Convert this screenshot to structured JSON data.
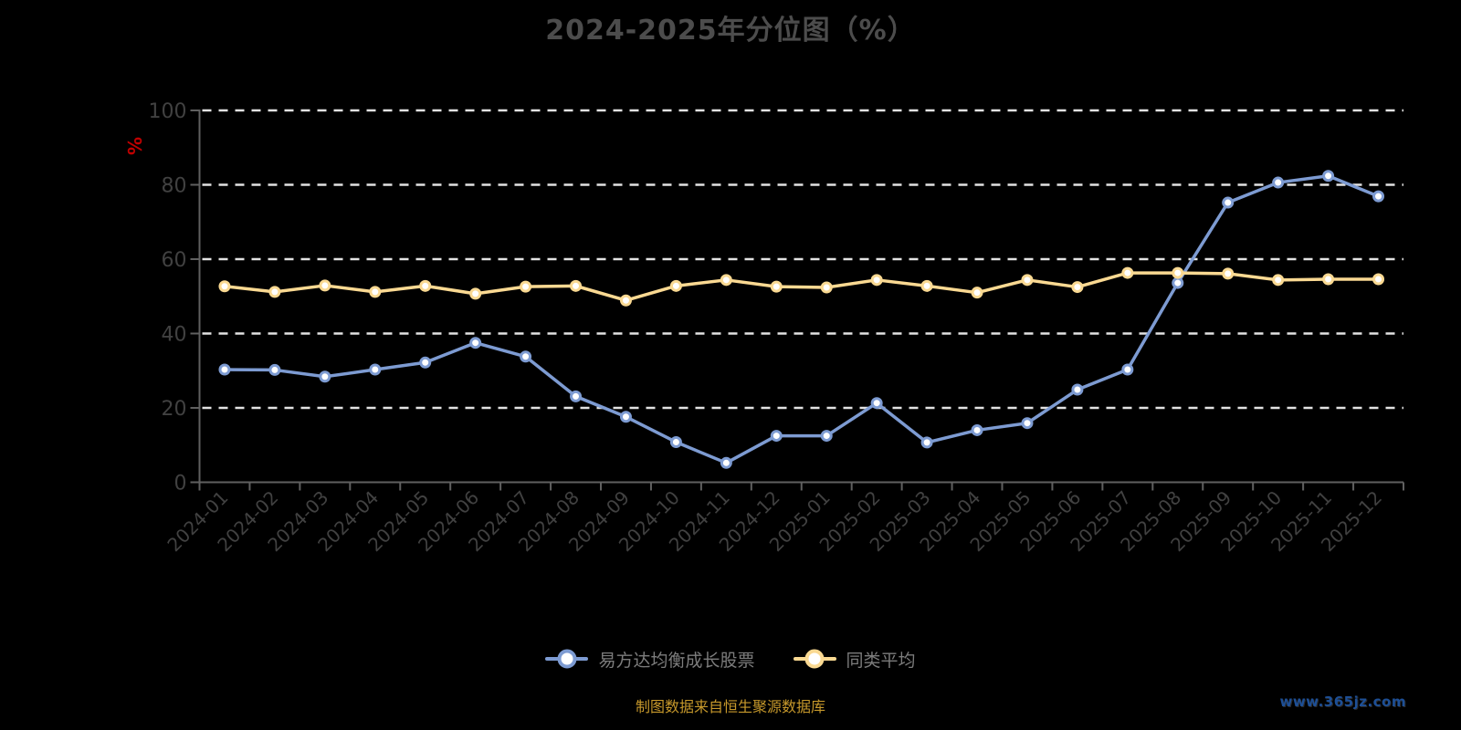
{
  "source_note": "制图数据来自恒生聚源数据库",
  "watermark": "www.365jz.com",
  "colors": {
    "background": "#000000",
    "title": "#4c4c4c",
    "axis_label": "#414141",
    "axis_line": "#606060",
    "gridline": "#e2e2e2",
    "unit": "#c00000",
    "legend_text": "#7c7c7c",
    "source_note": "#c6982b",
    "watermark": "#1d4f96",
    "marker_fill": "#ffffff"
  },
  "chart_data": {
    "type": "line",
    "title": "2024-2025年分位图（%）",
    "ylabel": "%",
    "xlabel": "",
    "ylim": [
      0,
      100
    ],
    "yticks": [
      0,
      20,
      40,
      60,
      80,
      100
    ],
    "grid": "horizontal-dashed-white",
    "legend_position": "bottom",
    "x_label_rotation": 45,
    "categories": [
      "2024-01",
      "2024-02",
      "2024-03",
      "2024-04",
      "2024-05",
      "2024-06",
      "2024-07",
      "2024-08",
      "2024-09",
      "2024-10",
      "2024-11",
      "2024-12",
      "2025-01",
      "2025-02",
      "2025-03",
      "2025-04",
      "2025-05",
      "2025-06",
      "2025-07",
      "2025-08",
      "2025-09",
      "2025-10",
      "2025-11",
      "2025-12"
    ],
    "series": [
      {
        "name": "易方达均衡成长股票",
        "color": "#7d9bd2",
        "values": [
          30.3,
          30.2,
          28.4,
          30.3,
          32.2,
          37.5,
          33.8,
          23.1,
          17.6,
          10.8,
          5.2,
          12.5,
          12.5,
          21.3,
          10.7,
          14.0,
          15.9,
          24.9,
          30.3,
          53.6,
          75.2,
          80.6,
          82.4,
          76.9
        ]
      },
      {
        "name": "同类平均",
        "color": "#fad992",
        "values": [
          52.7,
          51.2,
          52.9,
          51.2,
          52.8,
          50.7,
          52.6,
          52.8,
          48.9,
          52.8,
          54.4,
          52.6,
          52.4,
          54.4,
          52.8,
          51.0,
          54.4,
          52.5,
          56.3,
          56.3,
          56.1,
          54.4,
          54.6,
          54.6
        ]
      }
    ]
  }
}
